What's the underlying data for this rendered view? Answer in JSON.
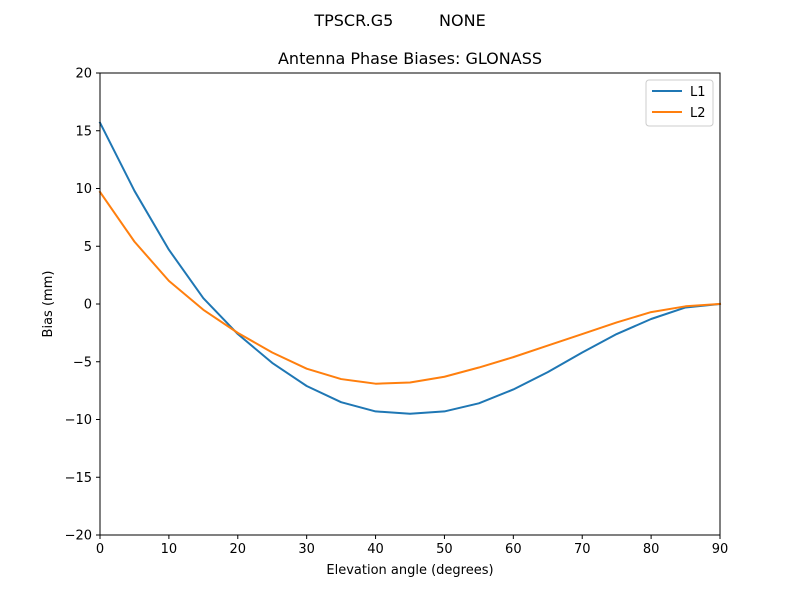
{
  "suptitle": "TPSCR.G5         NONE",
  "chart_data": {
    "type": "line",
    "title": "Antenna Phase Biases: GLONASS",
    "xlabel": "Elevation angle (degrees)",
    "ylabel": "Bias (mm)",
    "xlim": [
      0,
      90
    ],
    "ylim": [
      -20,
      20
    ],
    "xticks": [
      0,
      10,
      20,
      30,
      40,
      50,
      60,
      70,
      80,
      90
    ],
    "yticks": [
      -20,
      -15,
      -10,
      -5,
      0,
      5,
      10,
      15,
      20
    ],
    "ytick_labels": [
      "−20",
      "−15",
      "−10",
      "−5",
      "0",
      "5",
      "10",
      "15",
      "20"
    ],
    "legend_position": "top-right",
    "grid": false,
    "x": [
      0,
      5,
      10,
      15,
      20,
      25,
      30,
      35,
      40,
      45,
      50,
      55,
      60,
      65,
      70,
      75,
      80,
      85,
      90
    ],
    "series": [
      {
        "name": "L1",
        "color": "#1f77b4",
        "values": [
          15.7,
          9.8,
          4.7,
          0.5,
          -2.6,
          -5.1,
          -7.1,
          -8.5,
          -9.3,
          -9.5,
          -9.3,
          -8.6,
          -7.4,
          -5.9,
          -4.2,
          -2.6,
          -1.3,
          -0.3,
          0.0
        ]
      },
      {
        "name": "L2",
        "color": "#ff7f0e",
        "values": [
          9.7,
          5.4,
          2.0,
          -0.5,
          -2.5,
          -4.2,
          -5.6,
          -6.5,
          -6.9,
          -6.8,
          -6.3,
          -5.5,
          -4.6,
          -3.6,
          -2.6,
          -1.6,
          -0.7,
          -0.2,
          0.0
        ]
      }
    ]
  }
}
